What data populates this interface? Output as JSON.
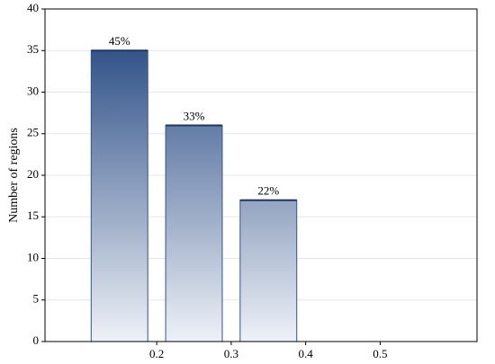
{
  "chart_data": {
    "type": "histogram",
    "y_label": "Number of regions",
    "bins": [
      0.1,
      0.2,
      0.3,
      0.4
    ],
    "values": [
      35,
      26,
      17
    ],
    "bar_labels": [
      "45%",
      "33%",
      "22%"
    ],
    "color": "#33548a",
    "xlim": [
      0.05,
      0.63
    ],
    "xticks": [
      0.2,
      0.3,
      0.4,
      0.5
    ],
    "ylim": [
      0,
      40
    ],
    "yticks": [
      0,
      5,
      10,
      15,
      20,
      25,
      30,
      35,
      40
    ],
    "grid": true
  }
}
